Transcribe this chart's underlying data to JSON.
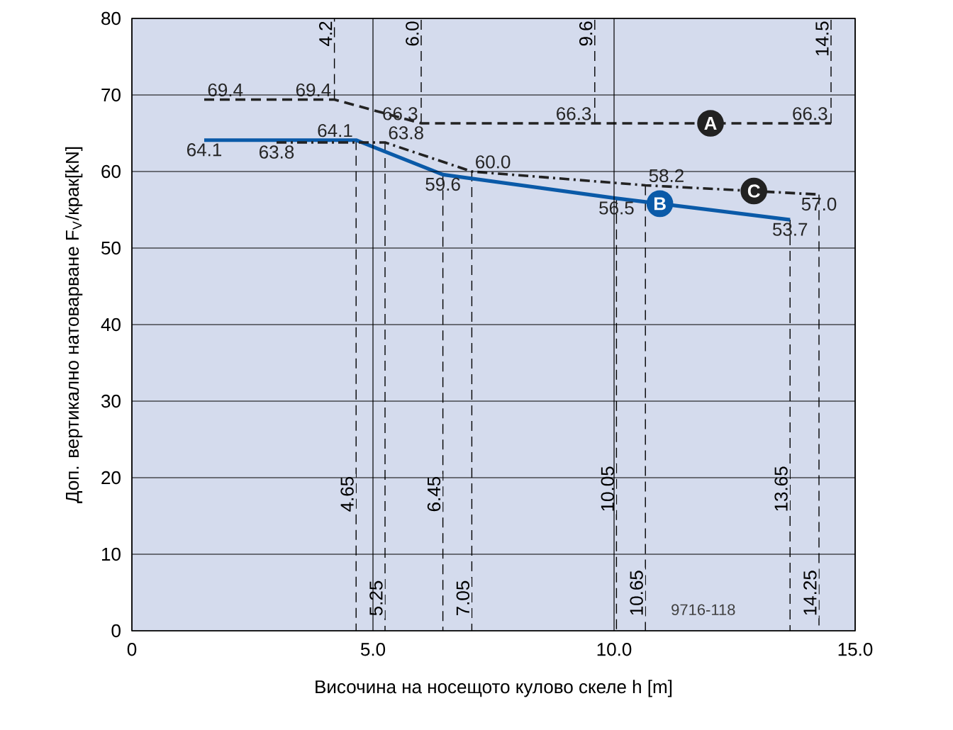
{
  "chart_data": {
    "type": "line",
    "xlabel": "Височина на носещото кулово скеле h [m]",
    "ylabel": "Доп. вертикално натоварване F$_{V}$/крак[kN]",
    "xlim": [
      0,
      15
    ],
    "ylim": [
      0,
      80
    ],
    "xticks": [
      {
        "value": 0,
        "label": "0"
      },
      {
        "value": 5,
        "label": "5.0"
      },
      {
        "value": 10,
        "label": "10.0"
      },
      {
        "value": 15,
        "label": "15.0"
      }
    ],
    "yticks": [
      0,
      10,
      20,
      30,
      40,
      50,
      60,
      70,
      80
    ],
    "grid": true,
    "marker": "none",
    "series": [
      {
        "name": "A",
        "color": "#222222",
        "line_style": "dashed",
        "x": [
          1.5,
          4.2,
          6.0,
          9.6,
          14.5
        ],
        "values": [
          69.4,
          69.4,
          66.3,
          66.3,
          66.3
        ],
        "value_labels": [
          "69.4",
          "69.4",
          "66.3",
          "66.3",
          "66.3"
        ]
      },
      {
        "name": "B",
        "color": "#0a5aa8",
        "line_style": "solid",
        "x": [
          1.5,
          4.65,
          6.45,
          10.05,
          13.65
        ],
        "values": [
          64.1,
          64.1,
          59.6,
          56.5,
          53.7
        ],
        "value_labels": [
          "64.1",
          "64.1",
          "59.6",
          "56.5",
          "53.7"
        ]
      },
      {
        "name": "C",
        "color": "#222222",
        "line_style": "dashdot",
        "x": [
          3.0,
          5.25,
          7.05,
          10.65,
          14.25
        ],
        "values": [
          63.8,
          63.8,
          60.0,
          58.2,
          57.0
        ],
        "value_labels": [
          "63.8",
          "63.8",
          "60.0",
          "58.2",
          "57.0"
        ]
      }
    ],
    "ref_lines": [
      {
        "axis": "x",
        "value": 4.2,
        "label": "4.2",
        "line_style": "dashed"
      },
      {
        "axis": "x",
        "value": 6.0,
        "label": "6.0",
        "line_style": "dashed"
      },
      {
        "axis": "x",
        "value": 9.6,
        "label": "9.6",
        "line_style": "dashed"
      },
      {
        "axis": "x",
        "value": 14.5,
        "label": "14.5",
        "line_style": "dashed"
      },
      {
        "axis": "x",
        "value": 4.65,
        "label": "4.65",
        "line_style": "dashed"
      },
      {
        "axis": "x",
        "value": 5.25,
        "label": "5.25",
        "line_style": "dashed"
      },
      {
        "axis": "x",
        "value": 6.45,
        "label": "6.45",
        "line_style": "dashed"
      },
      {
        "axis": "x",
        "value": 7.05,
        "label": "7.05",
        "line_style": "dashed"
      },
      {
        "axis": "x",
        "value": 10.05,
        "label": "10.05",
        "line_style": "dashed"
      },
      {
        "axis": "x",
        "value": 10.65,
        "label": "10.65",
        "line_style": "dashed"
      },
      {
        "axis": "x",
        "value": 13.65,
        "label": "13.65",
        "line_style": "dashed"
      },
      {
        "axis": "x",
        "value": 14.25,
        "label": "14.25",
        "line_style": "dashed"
      }
    ],
    "annotations": [
      "9716-118"
    ]
  }
}
